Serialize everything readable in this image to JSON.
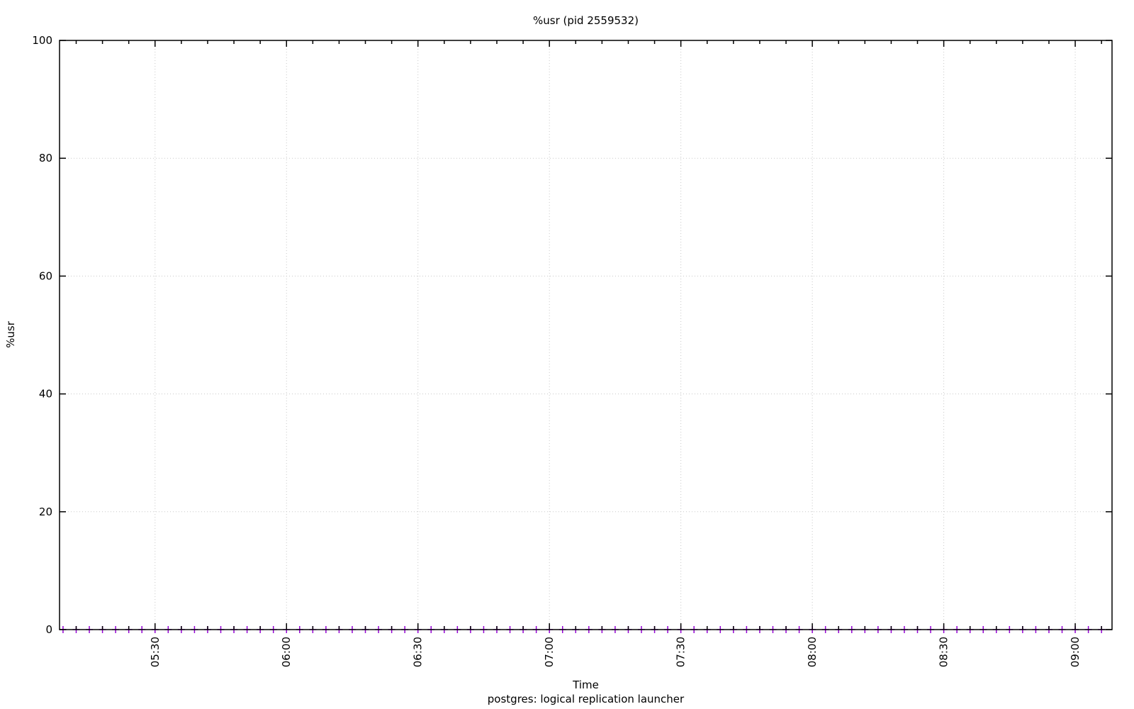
{
  "title": "%usr (pid 2559532)",
  "chart_data": {
    "type": "scatter",
    "title": "%usr (pid 2559532)",
    "xlabel": "Time",
    "ylabel": "%usr",
    "key_label": "postgres: logical replication launcher",
    "key_position": "below",
    "grid": true,
    "grid_style": "dotted",
    "grid_color": "#c8c8c8",
    "border_color": "#000000",
    "marker": "plus",
    "marker_color": "#9400d3",
    "ylim": [
      0,
      100
    ],
    "yticks": [
      0,
      20,
      40,
      60,
      80,
      100
    ],
    "xtick_labels": [
      "05:30",
      "06:00",
      "06:30",
      "07:00",
      "07:30",
      "08:00",
      "08:30",
      "09:00"
    ],
    "xtick_minutes": [
      330,
      360,
      390,
      420,
      450,
      480,
      510,
      540
    ],
    "x_minor_step_minutes": 6,
    "xrange_minutes": [
      308.2,
      548.4
    ],
    "series": [
      {
        "name": "postgres: logical replication launcher",
        "x": [
          "05:09",
          "05:12",
          "05:15",
          "05:18",
          "05:21",
          "05:24",
          "05:27",
          "05:30",
          "05:33",
          "05:36",
          "05:39",
          "05:42",
          "05:45",
          "05:48",
          "05:51",
          "05:54",
          "05:57",
          "06:00",
          "06:03",
          "06:06",
          "06:09",
          "06:12",
          "06:15",
          "06:18",
          "06:21",
          "06:24",
          "06:27",
          "06:30",
          "06:33",
          "06:36",
          "06:39",
          "06:42",
          "06:45",
          "06:48",
          "06:51",
          "06:54",
          "06:57",
          "07:00",
          "07:03",
          "07:06",
          "07:09",
          "07:12",
          "07:15",
          "07:18",
          "07:21",
          "07:24",
          "07:27",
          "07:30",
          "07:33",
          "07:36",
          "07:39",
          "07:42",
          "07:45",
          "07:48",
          "07:51",
          "07:54",
          "07:57",
          "08:00",
          "08:03",
          "08:06",
          "08:09",
          "08:12",
          "08:15",
          "08:18",
          "08:21",
          "08:24",
          "08:27",
          "08:30",
          "08:33",
          "08:36",
          "08:39",
          "08:42",
          "08:45",
          "08:48",
          "08:51",
          "08:54",
          "08:57",
          "09:00",
          "09:03",
          "09:06"
        ],
        "values": [
          0,
          0,
          0,
          0,
          0,
          0,
          0,
          0,
          0,
          0,
          0,
          0,
          0,
          0,
          0,
          0,
          0,
          0,
          0,
          0,
          0,
          0,
          0,
          0,
          0,
          0,
          0,
          0,
          0,
          0,
          0,
          0,
          0,
          0,
          0,
          0,
          0,
          0,
          0,
          0,
          0,
          0,
          0,
          0,
          0,
          0,
          0,
          0,
          0,
          0,
          0,
          0,
          0,
          0,
          0,
          0,
          0,
          0,
          0,
          0,
          0,
          0,
          0,
          0,
          0,
          0,
          0,
          0,
          0,
          0,
          0,
          0,
          0,
          0,
          0,
          0,
          0,
          0,
          0,
          0
        ]
      }
    ]
  }
}
